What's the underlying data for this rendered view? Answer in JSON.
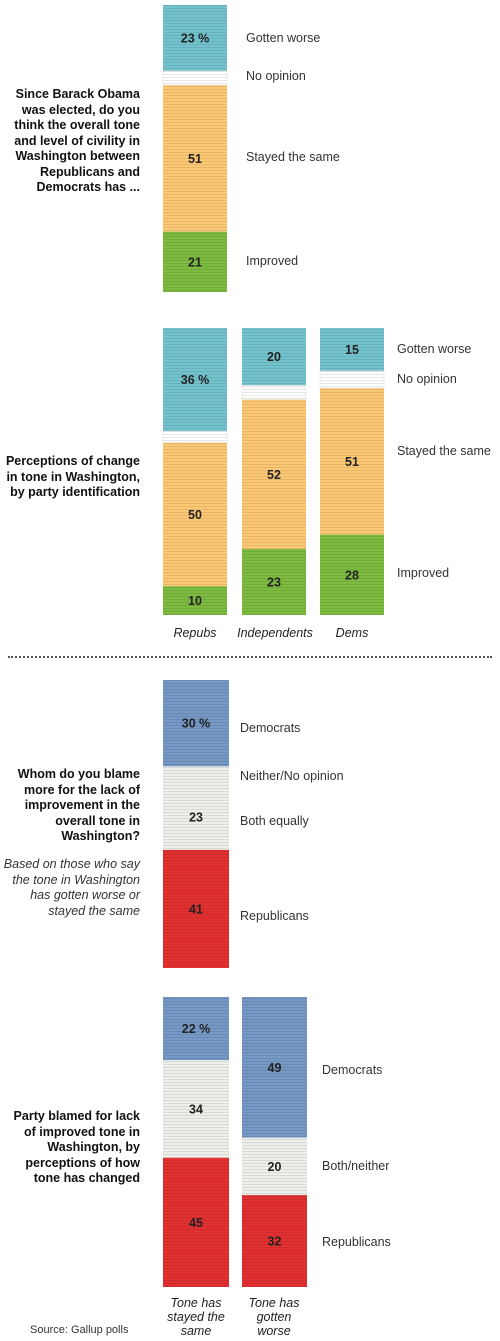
{
  "colors": {
    "gotten_worse": "#72c3cd",
    "no_opinion": "#ffffff",
    "stayed_same": "#fdc874",
    "improved": "#7cbb3f",
    "democrats": "#7598c5",
    "neither": "#eeeeea",
    "republicans": "#e23030"
  },
  "chart_data": [
    {
      "type": "bar",
      "title": "Since Barack Obama was elected, do you think the overall tone and level of civility in Washington between Republicans and Democrats has ...",
      "categories": [
        ""
      ],
      "series": [
        {
          "name": "Gotten worse",
          "values": [
            23
          ],
          "label": "23 %"
        },
        {
          "name": "No opinion",
          "values": [
            5
          ],
          "label": ""
        },
        {
          "name": "Stayed the same",
          "values": [
            51
          ],
          "label": "51"
        },
        {
          "name": "Improved",
          "values": [
            21
          ],
          "label": "21"
        }
      ]
    },
    {
      "type": "bar",
      "title": "Perceptions of change in tone in Washington, by party identification",
      "categories": [
        "Repubs",
        "Independents",
        "Dems"
      ],
      "series": [
        {
          "name": "Gotten worse",
          "values": [
            36,
            20,
            15
          ],
          "labels": [
            "36 %",
            "20",
            "15"
          ]
        },
        {
          "name": "No opinion",
          "values": [
            4,
            5,
            6
          ],
          "labels": [
            "",
            "",
            ""
          ]
        },
        {
          "name": "Stayed the same",
          "values": [
            50,
            52,
            51
          ],
          "labels": [
            "50",
            "52",
            "51"
          ]
        },
        {
          "name": "Improved",
          "values": [
            10,
            23,
            28
          ],
          "labels": [
            "10",
            "23",
            "28"
          ]
        }
      ]
    },
    {
      "type": "bar",
      "title": "Whom do you blame more for the lack of improvement in the overall tone in Washington?",
      "note": "Based on those who say the tone in Washington has gotten worse or stayed the same",
      "categories": [
        ""
      ],
      "series": [
        {
          "name": "Democrats",
          "values": [
            30
          ],
          "label": "30 %"
        },
        {
          "name": "Neither/No opinion",
          "values": [
            6
          ],
          "label": ""
        },
        {
          "name": "Both equally",
          "values": [
            23
          ],
          "label": "23"
        },
        {
          "name": "Republicans",
          "values": [
            41
          ],
          "label": "41"
        }
      ]
    },
    {
      "type": "bar",
      "title": "Party blamed for lack of improved tone in Washington, by perceptions of how tone has changed",
      "categories": [
        "Tone has stayed the same",
        "Tone has gotten worse"
      ],
      "series": [
        {
          "name": "Democrats",
          "values": [
            22,
            49
          ],
          "labels": [
            "22 %",
            "49"
          ]
        },
        {
          "name": "Both/neither",
          "values": [
            34,
            20
          ],
          "labels": [
            "34",
            "20"
          ]
        },
        {
          "name": "Republicans",
          "values": [
            45,
            32
          ],
          "labels": [
            "45",
            "32"
          ]
        }
      ]
    }
  ],
  "text": {
    "q1": "Since Barack Obama was elected, do you think the overall tone and level of civility in Washington between Republicans and Democrats has ...",
    "q2": "Perceptions of change in tone in Washington, by party identification",
    "q3": "Whom do you blame more for the lack of improvement in the overall tone in Washington?",
    "q3_note": "Based on those who say the tone in Washington has gotten worse or stayed the same",
    "q4": "Party blamed for lack of improved tone in Washington, by perceptions of how tone has changed",
    "c1": {
      "gotten_worse": "Gotten worse",
      "no_opinion": "No opinion",
      "stayed_same": "Stayed the same",
      "improved": "Improved"
    },
    "c2": {
      "gotten_worse": "Gotten worse",
      "no_opinion": "No opinion",
      "stayed_same": "Stayed the same",
      "improved": "Improved",
      "x_repubs": "Repubs",
      "x_independents": "Independents",
      "x_dems": "Dems"
    },
    "c3": {
      "democrats": "Democrats",
      "neither": "Neither/No opinion",
      "both": "Both equally",
      "republicans": "Republicans"
    },
    "c4": {
      "democrats": "Democrats",
      "both": "Both/neither",
      "republicans": "Republicans",
      "x_same_1": "Tone has",
      "x_same_2": "stayed the",
      "x_same_3": "same",
      "x_worse_1": "Tone has",
      "x_worse_2": "gotten",
      "x_worse_3": "worse"
    },
    "source": "Source: Gallup polls"
  }
}
